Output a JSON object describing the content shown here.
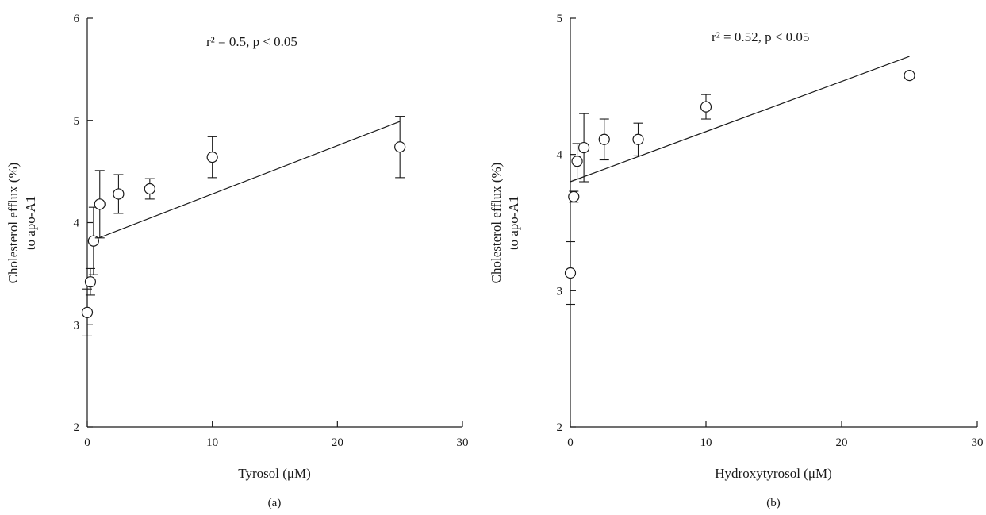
{
  "chart_data": [
    {
      "type": "scatter",
      "panel_label": "(a)",
      "xlabel": "Tyrosol (μM)",
      "ylabel_line1": "Cholesterol efflux (%)",
      "ylabel_line2": "to apo-A1",
      "annotation": "r² = 0.5, p < 0.05",
      "xlim": [
        0,
        30
      ],
      "ylim": [
        2,
        6
      ],
      "xticks": [
        0,
        10,
        20,
        30
      ],
      "yticks": [
        2,
        3,
        4,
        5,
        6
      ],
      "grid": false,
      "points": [
        {
          "x": 0,
          "y": 3.12,
          "err": 0.23
        },
        {
          "x": 0.25,
          "y": 3.42,
          "err": 0.13
        },
        {
          "x": 0.5,
          "y": 3.82,
          "err": 0.33
        },
        {
          "x": 1,
          "y": 4.18,
          "err": 0.33
        },
        {
          "x": 2.5,
          "y": 4.28,
          "err": 0.19
        },
        {
          "x": 5,
          "y": 4.33,
          "err": 0.1
        },
        {
          "x": 10,
          "y": 4.64,
          "err": 0.2
        },
        {
          "x": 25,
          "y": 4.74,
          "err": 0.3
        }
      ],
      "trendline": {
        "x": [
          0.5,
          25
        ],
        "y": [
          3.83,
          4.99
        ]
      }
    },
    {
      "type": "scatter",
      "panel_label": "(b)",
      "xlabel": "Hydroxytyrosol (μM)",
      "ylabel_line1": "Cholesterol efflux (%)",
      "ylabel_line2": "to apo-A1",
      "annotation": "r² = 0.52, p < 0.05",
      "xlim": [
        0,
        30
      ],
      "ylim": [
        2,
        5
      ],
      "xticks": [
        0,
        10,
        20,
        30
      ],
      "yticks": [
        2,
        3,
        4,
        5
      ],
      "grid": false,
      "points": [
        {
          "x": 0,
          "y": 3.13,
          "err": 0.23
        },
        {
          "x": 0.25,
          "y": 3.69,
          "err": 0.04
        },
        {
          "x": 0.5,
          "y": 3.95,
          "err": 0.13
        },
        {
          "x": 1,
          "y": 4.05,
          "err": 0.25
        },
        {
          "x": 2.5,
          "y": 4.11,
          "err": 0.15
        },
        {
          "x": 5,
          "y": 4.11,
          "err": 0.12
        },
        {
          "x": 10,
          "y": 4.35,
          "err": 0.09
        },
        {
          "x": 25,
          "y": 4.58,
          "err": 0
        }
      ],
      "trendline": {
        "x": [
          0,
          25
        ],
        "y": [
          3.8,
          4.72
        ]
      }
    }
  ]
}
